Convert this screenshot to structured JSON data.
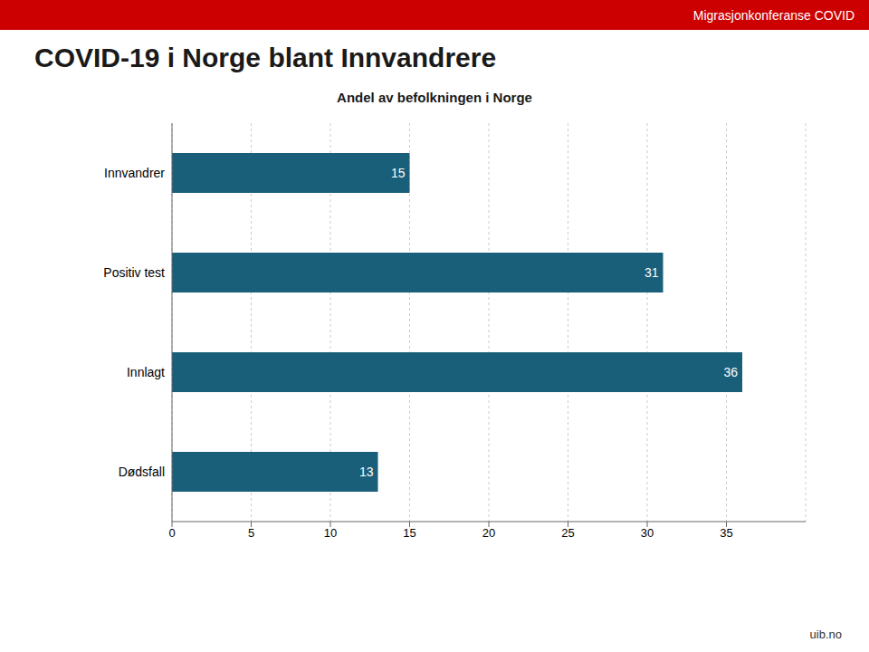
{
  "chart_data": {
    "type": "bar",
    "orientation": "horizontal",
    "title": "COVID-19 i Norge blant Innvandrere",
    "subtitle": "Andel av befolkningen i Norge",
    "annotations": [
      "Migrasjonkonferanse COVID",
      "uib.no"
    ],
    "categories": [
      "Innvandrer",
      "Positiv test",
      "Innlagt",
      "Dødsfall"
    ],
    "values": [
      15,
      31,
      36,
      13
    ],
    "color": "#1a5f7a",
    "xlim": [
      0,
      40
    ],
    "xticks": [
      0,
      5,
      10,
      15,
      20,
      25,
      30,
      35
    ],
    "grid": true,
    "data_labels": true
  }
}
